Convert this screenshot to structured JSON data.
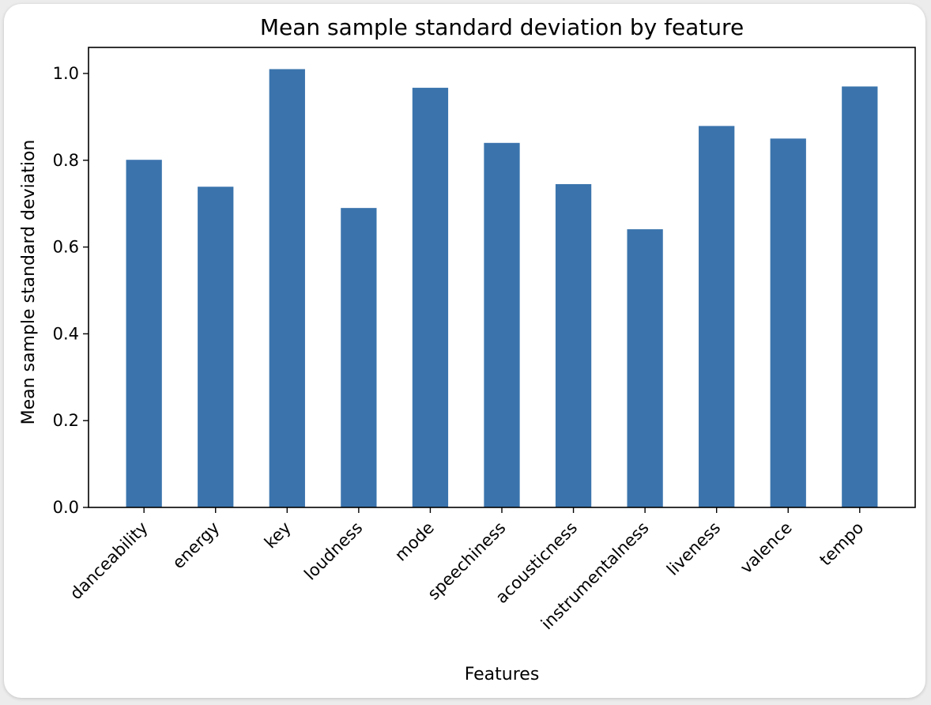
{
  "chart_data": {
    "type": "bar",
    "title": "Mean sample standard deviation by feature",
    "xlabel": "Features",
    "ylabel": "Mean sample standard deviation",
    "categories": [
      "danceability",
      "energy",
      "key",
      "loudness",
      "mode",
      "speechiness",
      "acousticness",
      "instrumentalness",
      "liveness",
      "valence",
      "tempo"
    ],
    "values": [
      0.801,
      0.739,
      1.01,
      0.69,
      0.967,
      0.84,
      0.745,
      0.641,
      0.879,
      0.85,
      0.97
    ],
    "ylim": [
      0,
      1.06
    ],
    "yticks": [
      0.0,
      0.2,
      0.4,
      0.6,
      0.8,
      1.0
    ],
    "ytick_labels": [
      "0.0",
      "0.2",
      "0.4",
      "0.6",
      "0.8",
      "1.0"
    ],
    "grid": false,
    "legend": "none",
    "bar_color": "#3b74ad"
  }
}
